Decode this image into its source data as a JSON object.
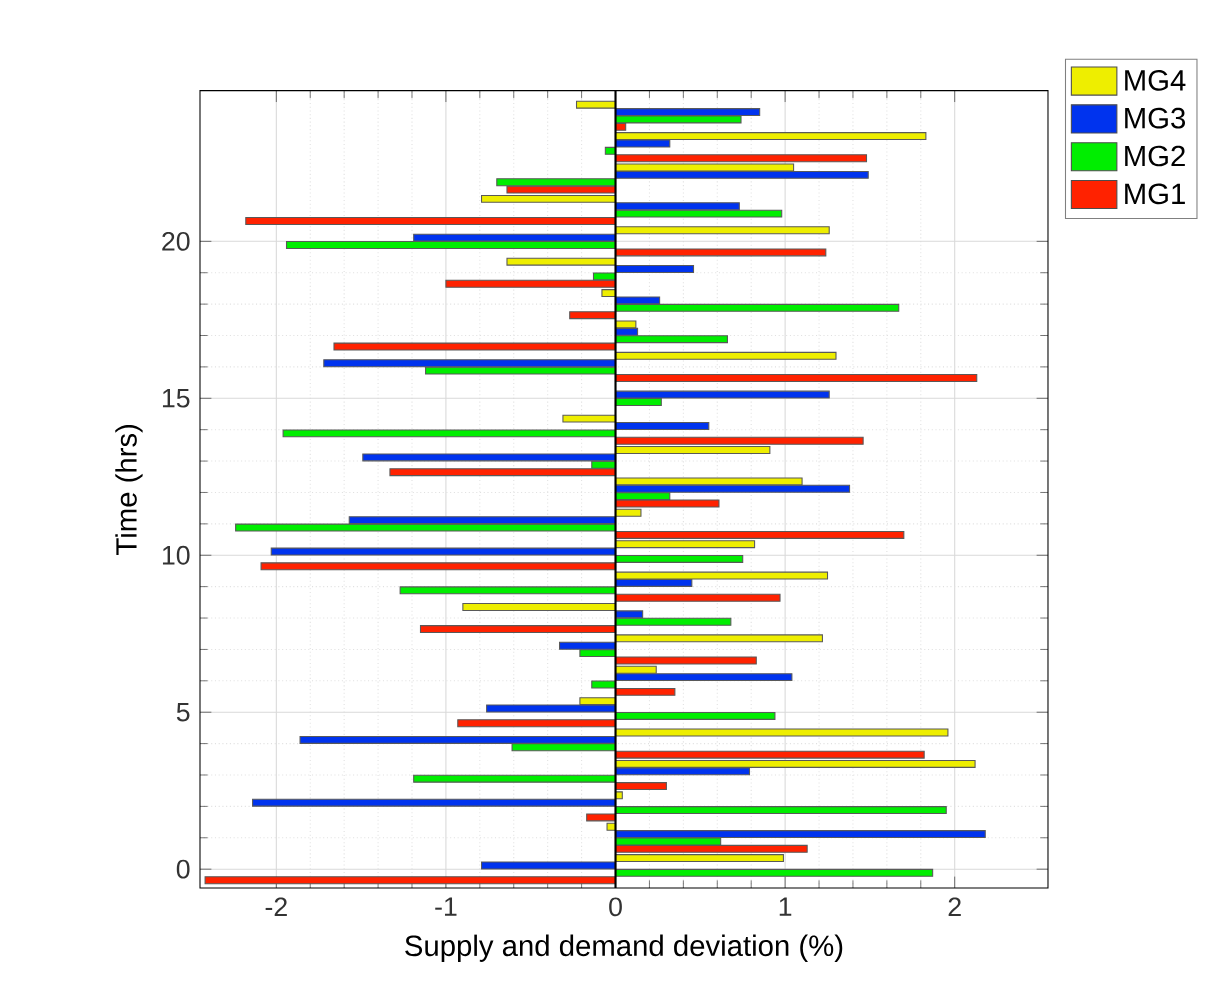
{
  "chart_data": {
    "type": "bar",
    "orientation": "horizontal",
    "xlabel": "Supply and demand deviation (%)",
    "ylabel": "Time (hrs)",
    "x": [
      0,
      1,
      2,
      3,
      4,
      5,
      6,
      7,
      8,
      9,
      10,
      11,
      12,
      13,
      14,
      15,
      16,
      17,
      18,
      19,
      20,
      21,
      22,
      23,
      24
    ],
    "series": [
      {
        "name": "MG1",
        "color": "#ff2200",
        "values": [
          -2.42,
          1.13,
          -0.17,
          0.3,
          1.82,
          -0.93,
          0.35,
          0.83,
          -1.15,
          0.97,
          -2.09,
          1.7,
          0.61,
          -1.33,
          1.46,
          null,
          2.13,
          -1.66,
          -0.27,
          -1.0,
          1.24,
          -2.18,
          -0.64,
          1.48,
          0.06
        ]
      },
      {
        "name": "MG2",
        "color": "#00ee00",
        "values": [
          1.87,
          0.62,
          1.95,
          -1.19,
          -0.61,
          0.94,
          -0.14,
          -0.21,
          0.68,
          -1.27,
          0.75,
          -2.24,
          0.32,
          -0.14,
          -1.96,
          0.27,
          -1.12,
          0.66,
          1.67,
          -0.13,
          -1.94,
          0.98,
          -0.7,
          -0.06,
          0.74
        ]
      },
      {
        "name": "MG3",
        "color": "#0033ee",
        "values": [
          -0.79,
          2.18,
          -2.14,
          0.79,
          -1.86,
          -0.76,
          1.04,
          -0.33,
          0.16,
          0.45,
          -2.03,
          -1.57,
          1.38,
          -1.49,
          0.55,
          1.26,
          -1.72,
          0.13,
          0.26,
          0.46,
          -1.19,
          0.73,
          1.49,
          0.32,
          0.85
        ]
      },
      {
        "name": "MG4",
        "color": "#eeee00",
        "values": [
          0.99,
          -0.05,
          0.04,
          2.12,
          1.96,
          -0.21,
          0.24,
          1.22,
          -0.9,
          1.25,
          0.82,
          0.15,
          1.1,
          0.91,
          -0.31,
          null,
          1.3,
          0.12,
          -0.08,
          -0.64,
          1.26,
          -0.79,
          1.05,
          1.83,
          -0.23
        ]
      }
    ],
    "xlim": [
      -2.45,
      2.55
    ],
    "xticks": [
      -2,
      -1,
      0,
      1,
      2
    ],
    "ylim": [
      -0.6,
      24.8
    ],
    "yticks": [
      0,
      5,
      10,
      15,
      20
    ],
    "grid": true,
    "legend": "top right"
  }
}
